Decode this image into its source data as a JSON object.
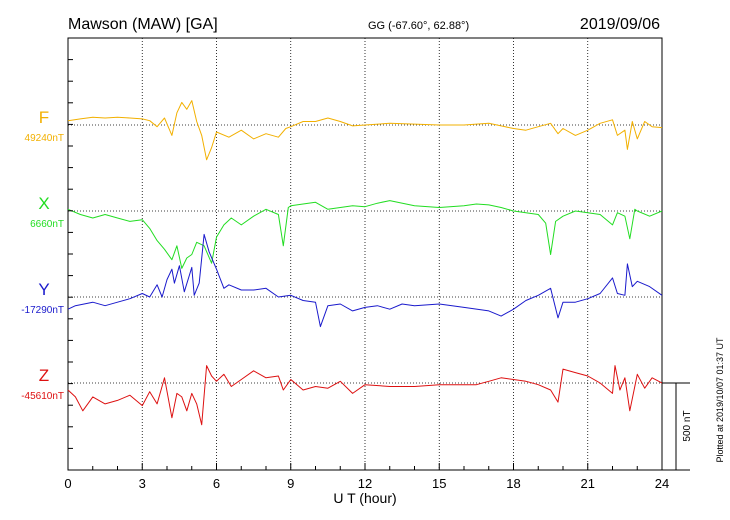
{
  "header": {
    "title": "Mawson (MAW)  [GA]",
    "coords": "GG (-67.60°,  62.88°)",
    "date": "2019/09/06"
  },
  "side_note": "Plotted at 2019/10/07 01:37 UT",
  "scale_bar": {
    "label": "500 nT",
    "value_nT": 500
  },
  "colors": {
    "F": "#f2b000",
    "X": "#22dd22",
    "Y": "#1a1acc",
    "Z": "#dd1111",
    "axis": "#000000"
  },
  "chart_data": {
    "type": "line",
    "title": "Mawson (MAW)  [GA]",
    "xlabel": "U T (hour)",
    "ylabel": "",
    "xlim": [
      0,
      24
    ],
    "xticks": [
      0,
      3,
      6,
      9,
      12,
      15,
      18,
      21,
      24
    ],
    "grid": "dotted vertical every 3 h; dotted horizontal baselines",
    "series": [
      {
        "name": "F",
        "baseline_label": "49240nT",
        "baseline_nT": 49240,
        "points": [
          [
            0,
            25
          ],
          [
            0.5,
            35
          ],
          [
            1,
            45
          ],
          [
            1.5,
            40
          ],
          [
            2,
            45
          ],
          [
            2.5,
            40
          ],
          [
            3,
            35
          ],
          [
            3.3,
            25
          ],
          [
            3.6,
            -10
          ],
          [
            3.9,
            40
          ],
          [
            4.2,
            -60
          ],
          [
            4.4,
            70
          ],
          [
            4.6,
            130
          ],
          [
            4.8,
            90
          ],
          [
            5.0,
            140
          ],
          [
            5.2,
            20
          ],
          [
            5.4,
            -60
          ],
          [
            5.6,
            -200
          ],
          [
            5.8,
            -130
          ],
          [
            6,
            -40
          ],
          [
            6.5,
            -70
          ],
          [
            7,
            -30
          ],
          [
            7.5,
            -80
          ],
          [
            8,
            -50
          ],
          [
            8.5,
            -70
          ],
          [
            8.8,
            -20
          ],
          [
            9,
            -10
          ],
          [
            9.5,
            20
          ],
          [
            10,
            20
          ],
          [
            10.5,
            40
          ],
          [
            11,
            20
          ],
          [
            11.5,
            -5
          ],
          [
            12,
            0
          ],
          [
            13,
            10
          ],
          [
            14,
            5
          ],
          [
            15,
            0
          ],
          [
            16,
            0
          ],
          [
            17,
            10
          ],
          [
            17.5,
            -5
          ],
          [
            18,
            -20
          ],
          [
            18.5,
            -30
          ],
          [
            19,
            -10
          ],
          [
            19.5,
            10
          ],
          [
            19.8,
            -50
          ],
          [
            20,
            -20
          ],
          [
            20.5,
            -60
          ],
          [
            21,
            -30
          ],
          [
            21.5,
            10
          ],
          [
            22,
            30
          ],
          [
            22.2,
            -60
          ],
          [
            22.5,
            -30
          ],
          [
            22.6,
            -140
          ],
          [
            22.8,
            20
          ],
          [
            23,
            -80
          ],
          [
            23.3,
            20
          ],
          [
            23.6,
            -10
          ],
          [
            24,
            -15
          ]
        ]
      },
      {
        "name": "X",
        "baseline_label": "6660nT",
        "baseline_nT": 6660,
        "points": [
          [
            0,
            10
          ],
          [
            0.5,
            -20
          ],
          [
            1,
            -40
          ],
          [
            1.5,
            -20
          ],
          [
            2,
            -40
          ],
          [
            2.5,
            -60
          ],
          [
            3,
            -50
          ],
          [
            3.3,
            -100
          ],
          [
            3.6,
            -170
          ],
          [
            3.9,
            -220
          ],
          [
            4.2,
            -280
          ],
          [
            4.4,
            -200
          ],
          [
            4.6,
            -330
          ],
          [
            4.8,
            -270
          ],
          [
            5,
            -250
          ],
          [
            5.2,
            -180
          ],
          [
            5.5,
            -200
          ],
          [
            5.8,
            -300
          ],
          [
            6,
            -150
          ],
          [
            6.3,
            -80
          ],
          [
            6.6,
            -40
          ],
          [
            7,
            -80
          ],
          [
            7.5,
            -30
          ],
          [
            8,
            10
          ],
          [
            8.5,
            -20
          ],
          [
            8.7,
            -200
          ],
          [
            8.9,
            20
          ],
          [
            9,
            30
          ],
          [
            9.5,
            40
          ],
          [
            10,
            50
          ],
          [
            10.5,
            10
          ],
          [
            11,
            20
          ],
          [
            11.5,
            30
          ],
          [
            12,
            25
          ],
          [
            12.5,
            45
          ],
          [
            13,
            60
          ],
          [
            14,
            30
          ],
          [
            15,
            20
          ],
          [
            16,
            30
          ],
          [
            16.5,
            40
          ],
          [
            17,
            35
          ],
          [
            17.5,
            20
          ],
          [
            18,
            0
          ],
          [
            18.5,
            -10
          ],
          [
            19,
            -20
          ],
          [
            19.3,
            -70
          ],
          [
            19.5,
            -250
          ],
          [
            19.7,
            -60
          ],
          [
            20,
            -30
          ],
          [
            20.5,
            0
          ],
          [
            21,
            -10
          ],
          [
            21.5,
            -20
          ],
          [
            22,
            -80
          ],
          [
            22.2,
            -10
          ],
          [
            22.5,
            -30
          ],
          [
            22.7,
            -160
          ],
          [
            22.9,
            10
          ],
          [
            23,
            0
          ],
          [
            23.5,
            -30
          ],
          [
            24,
            0
          ]
        ]
      },
      {
        "name": "Y",
        "baseline_label": "-17290nT",
        "baseline_nT": -17290,
        "points": [
          [
            0,
            -70
          ],
          [
            0.3,
            -50
          ],
          [
            1,
            -30
          ],
          [
            1.5,
            -50
          ],
          [
            2,
            -30
          ],
          [
            2.5,
            -10
          ],
          [
            3,
            20
          ],
          [
            3.3,
            0
          ],
          [
            3.6,
            70
          ],
          [
            3.8,
            0
          ],
          [
            4,
            100
          ],
          [
            4.2,
            160
          ],
          [
            4.3,
            80
          ],
          [
            4.5,
            180
          ],
          [
            4.7,
            30
          ],
          [
            5,
            170
          ],
          [
            5.1,
            10
          ],
          [
            5.3,
            80
          ],
          [
            5.5,
            360
          ],
          [
            5.7,
            260
          ],
          [
            6,
            160
          ],
          [
            6.3,
            50
          ],
          [
            6.5,
            70
          ],
          [
            7,
            40
          ],
          [
            7.5,
            40
          ],
          [
            8,
            50
          ],
          [
            8.5,
            0
          ],
          [
            9,
            10
          ],
          [
            9.5,
            -20
          ],
          [
            10,
            -30
          ],
          [
            10.2,
            -170
          ],
          [
            10.5,
            -50
          ],
          [
            11,
            -40
          ],
          [
            11.5,
            -80
          ],
          [
            12,
            -60
          ],
          [
            12.5,
            -50
          ],
          [
            13,
            -70
          ],
          [
            13.5,
            -40
          ],
          [
            14,
            -50
          ],
          [
            15,
            -40
          ],
          [
            16,
            -60
          ],
          [
            17,
            -80
          ],
          [
            17.5,
            -110
          ],
          [
            18,
            -70
          ],
          [
            18.5,
            -20
          ],
          [
            19,
            10
          ],
          [
            19.5,
            50
          ],
          [
            19.8,
            -120
          ],
          [
            20,
            -30
          ],
          [
            20.5,
            -30
          ],
          [
            21,
            -10
          ],
          [
            21.5,
            20
          ],
          [
            22,
            110
          ],
          [
            22.2,
            20
          ],
          [
            22.5,
            10
          ],
          [
            22.6,
            190
          ],
          [
            22.8,
            60
          ],
          [
            23,
            90
          ],
          [
            23.5,
            60
          ],
          [
            24,
            10
          ]
        ]
      },
      {
        "name": "Z",
        "baseline_label": "-45610nT",
        "baseline_nT": -45610,
        "points": [
          [
            0,
            -40
          ],
          [
            0.3,
            -80
          ],
          [
            0.6,
            -160
          ],
          [
            1,
            -80
          ],
          [
            1.5,
            -120
          ],
          [
            2,
            -100
          ],
          [
            2.5,
            -70
          ],
          [
            3,
            -130
          ],
          [
            3.3,
            -50
          ],
          [
            3.6,
            -120
          ],
          [
            3.9,
            30
          ],
          [
            4.2,
            -200
          ],
          [
            4.4,
            -60
          ],
          [
            4.6,
            -80
          ],
          [
            4.8,
            -160
          ],
          [
            5,
            -60
          ],
          [
            5.2,
            -120
          ],
          [
            5.4,
            -240
          ],
          [
            5.6,
            100
          ],
          [
            5.8,
            40
          ],
          [
            6,
            10
          ],
          [
            6.3,
            50
          ],
          [
            6.6,
            -20
          ],
          [
            7,
            20
          ],
          [
            7.5,
            70
          ],
          [
            8,
            30
          ],
          [
            8.5,
            40
          ],
          [
            8.7,
            -40
          ],
          [
            9,
            20
          ],
          [
            9.5,
            -40
          ],
          [
            10,
            -20
          ],
          [
            10.5,
            -30
          ],
          [
            11,
            10
          ],
          [
            11.5,
            -60
          ],
          [
            12,
            -10
          ],
          [
            13,
            -20
          ],
          [
            14,
            -20
          ],
          [
            15,
            -10
          ],
          [
            16,
            -10
          ],
          [
            16.5,
            -10
          ],
          [
            17,
            10
          ],
          [
            17.5,
            30
          ],
          [
            18,
            20
          ],
          [
            18.5,
            10
          ],
          [
            19,
            -10
          ],
          [
            19.5,
            -40
          ],
          [
            19.8,
            -110
          ],
          [
            20,
            80
          ],
          [
            20.5,
            60
          ],
          [
            21,
            40
          ],
          [
            21.5,
            0
          ],
          [
            22,
            -60
          ],
          [
            22.1,
            100
          ],
          [
            22.3,
            -40
          ],
          [
            22.5,
            30
          ],
          [
            22.7,
            -160
          ],
          [
            23,
            50
          ],
          [
            23.3,
            -30
          ],
          [
            23.6,
            30
          ],
          [
            24,
            0
          ]
        ]
      }
    ]
  }
}
